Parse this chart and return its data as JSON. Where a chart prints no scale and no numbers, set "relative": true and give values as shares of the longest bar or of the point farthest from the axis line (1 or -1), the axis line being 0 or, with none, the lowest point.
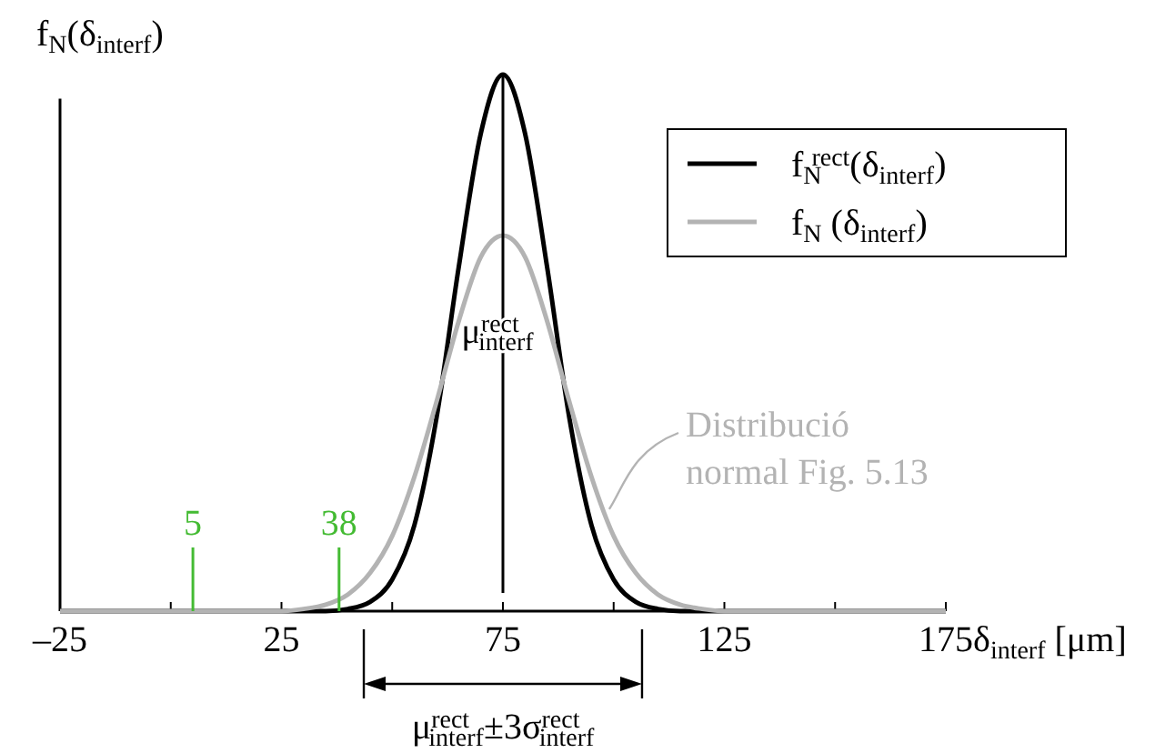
{
  "chart_data": {
    "type": "line",
    "relative": true,
    "xlabel": "δ$_{interf}$ [μm]",
    "ylabel": "f$_{N}$(δ$_{interf}$)",
    "xlim": [
      -25,
      175
    ],
    "xticks": [
      {
        "value": -25,
        "label": "–25"
      },
      {
        "value": 0,
        "label": null
      },
      25,
      {
        "value": 50,
        "label": null
      },
      75,
      {
        "value": 100,
        "label": null
      },
      125,
      {
        "value": 150,
        "label": null
      },
      175
    ],
    "series": [
      {
        "name": "f$_{N}$$^{rect}$(δ$_{interf}$)",
        "color": "#000000",
        "x": [
          -25,
          35,
          40,
          45,
          50,
          55,
          60,
          65,
          70,
          75,
          80,
          85,
          90,
          95,
          100,
          105,
          110,
          115,
          175
        ],
        "values": [
          0,
          0,
          0.004,
          0.017,
          0.059,
          0.16,
          0.36,
          0.64,
          0.89,
          1,
          0.89,
          0.64,
          0.36,
          0.16,
          0.059,
          0.017,
          0.004,
          0,
          0
        ]
      },
      {
        "name": "f$_{N}$ (δ$_{interf}$)",
        "color": "#b3b3b3",
        "x": [
          -25,
          25,
          30,
          35,
          40,
          45,
          50,
          55,
          60,
          65,
          70,
          75,
          80,
          85,
          90,
          95,
          100,
          105,
          110,
          115,
          120,
          125,
          175
        ],
        "values": [
          0,
          0,
          0.004,
          0.012,
          0.031,
          0.071,
          0.14,
          0.25,
          0.39,
          0.54,
          0.66,
          0.7,
          0.66,
          0.54,
          0.39,
          0.25,
          0.14,
          0.071,
          0.031,
          0.012,
          0.004,
          0,
          0
        ]
      }
    ],
    "ref_lines": [
      {
        "axis": "x",
        "value": 5,
        "label": "5",
        "color": "#44bb33"
      },
      {
        "axis": "x",
        "value": 38,
        "label": "38",
        "color": "#44bb33"
      },
      {
        "axis": "x",
        "value": 75,
        "label": "μ$^{rect}$$_{interf}$",
        "color": "#000000"
      }
    ],
    "annotations": [
      {
        "text": "Distribució normal Fig. 5.13",
        "x": 99,
        "y": 0.19
      },
      "μ$^{rect}$$_{interf}$±3σ$^{rect}$$_{interf}$"
    ],
    "legend": "top right",
    "grid": false,
    "marker": "none",
    "line_style": "solid"
  }
}
